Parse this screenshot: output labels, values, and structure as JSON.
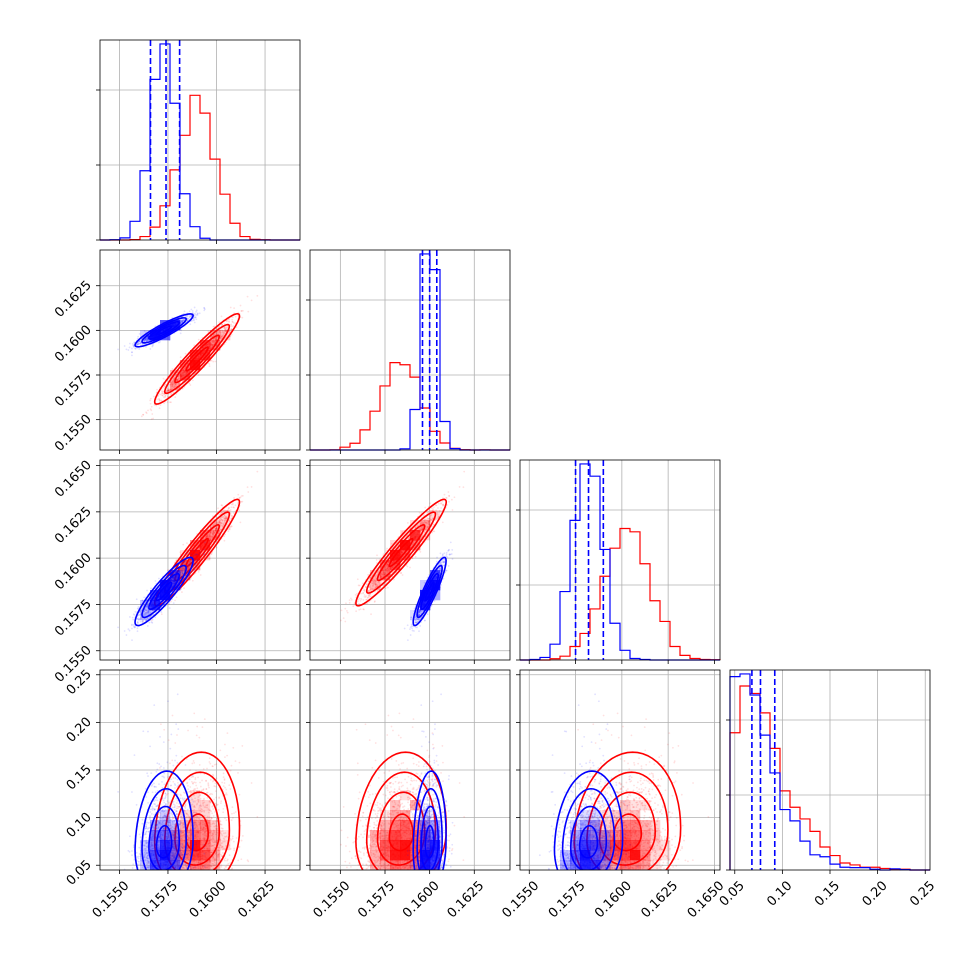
{
  "chart_data": {
    "type": "corner",
    "grid": true,
    "series": [
      {
        "color": "#ff0000",
        "means": [
          0.159,
          0.1584,
          0.1603,
          0.085
        ],
        "sigmas": [
          0.00095,
          0.0011,
          0.00125,
          0.03
        ],
        "correlations": [
          [
            1,
            0.95,
            0.95,
            0.1
          ],
          [
            0.95,
            1,
            0.95,
            0.1
          ],
          [
            0.95,
            0.95,
            1,
            0.1
          ],
          [
            0.1,
            0.1,
            0.1,
            1
          ]
        ],
        "skew": [
          0,
          0,
          0,
          1
        ]
      },
      {
        "color": "#0000ff",
        "means": [
          0.1573,
          0.16,
          0.1582,
          0.075
        ],
        "sigmas": [
          0.00065,
          0.0004,
          0.0008,
          0.013
        ],
        "correlations": [
          [
            1,
            0.9,
            0.9,
            0.1
          ],
          [
            0.9,
            1,
            0.9,
            0.1
          ],
          [
            0.9,
            0.9,
            1,
            0.1
          ],
          [
            0.1,
            0.1,
            0.1,
            1
          ]
        ],
        "skew": [
          0,
          0,
          0,
          1
        ],
        "quantile_lines": [
          [
            0.1566,
            0.1574,
            0.1581
          ],
          [
            0.1596,
            0.16,
            0.1604
          ],
          [
            0.1575,
            0.1582,
            0.159
          ],
          [
            0.068,
            0.077,
            0.092
          ]
        ]
      }
    ],
    "axes": [
      {
        "range": [
          0.154,
          0.1643
        ],
        "ticks": [
          "0.1550",
          "0.1575",
          "0.1600",
          "0.1625"
        ],
        "tick_values": [
          0.155,
          0.1575,
          0.16,
          0.1625
        ]
      },
      {
        "range": [
          0.1533,
          0.1645
        ],
        "ticks": [
          "0.1550",
          "0.1575",
          "0.1600",
          "0.1625"
        ],
        "tick_values": [
          0.155,
          0.1575,
          0.16,
          0.1625
        ]
      },
      {
        "range": [
          0.1545,
          0.1653
        ],
        "ticks": [
          "0.1550",
          "0.1575",
          "0.1600",
          "0.1625",
          "0.1650"
        ],
        "tick_values": [
          0.155,
          0.1575,
          0.16,
          0.1625,
          0.165
        ]
      },
      {
        "range": [
          0.045,
          0.255
        ],
        "ticks": [
          "0.05",
          "0.10",
          "0.15",
          "0.20",
          "0.25"
        ],
        "tick_values": [
          0.05,
          0.1,
          0.15,
          0.2,
          0.25
        ]
      }
    ]
  }
}
